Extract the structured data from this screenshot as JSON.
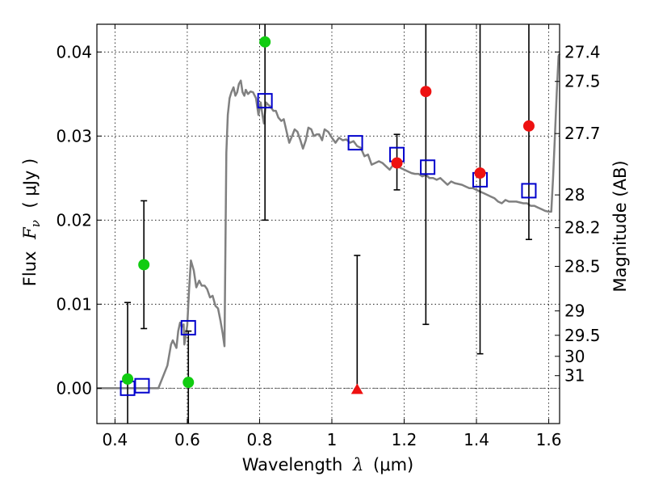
{
  "chart_data": {
    "type": "scatter",
    "xlabel_prefix": "Wavelength",
    "xlabel_symbol": "λ",
    "xlabel_units": "(μm)",
    "ylabel_prefix": "Flux",
    "ylabel_symbol": "F",
    "ylabel_subscript": "ν",
    "ylabel_units": "( μJy )",
    "y2label": "Magnitude (AB)",
    "xlim": [
      0.35,
      1.63
    ],
    "ylim": [
      -0.0042,
      0.0433
    ],
    "grid": true,
    "xticks": [
      0.4,
      0.6,
      0.8,
      1.0,
      1.2,
      1.4,
      1.6
    ],
    "xtick_labels": [
      "0.4",
      "0.6",
      "0.8",
      "1",
      "1.2",
      "1.4",
      "1.6"
    ],
    "yticks": [
      0.0,
      0.01,
      0.02,
      0.03,
      0.04
    ],
    "ytick_labels": [
      "0.00",
      "0.01",
      "0.02",
      "0.03",
      "0.04"
    ],
    "magnitude_ticks": [
      {
        "label": "27.4",
        "flux": 0.04
      },
      {
        "label": "27.5",
        "flux": 0.0365
      },
      {
        "label": "27.7",
        "flux": 0.0303
      },
      {
        "label": "28",
        "flux": 0.023
      },
      {
        "label": "28.2",
        "flux": 0.0191
      },
      {
        "label": "28.5",
        "flux": 0.0145
      },
      {
        "label": "29",
        "flux": 0.0092
      },
      {
        "label": "29.5",
        "flux": 0.0063
      },
      {
        "label": "30",
        "flux": 0.0038
      },
      {
        "label": "31",
        "flux": 0.0015
      }
    ],
    "series": [
      {
        "name": "model SED",
        "kind": "line",
        "color": "#808080",
        "x": [
          0.35,
          0.52,
          0.545,
          0.555,
          0.56,
          0.57,
          0.575,
          0.58,
          0.585,
          0.59,
          0.592,
          0.6,
          0.605,
          0.61,
          0.618,
          0.625,
          0.633,
          0.64,
          0.648,
          0.655,
          0.663,
          0.67,
          0.678,
          0.685,
          0.692,
          0.698,
          0.703,
          0.708,
          0.712,
          0.717,
          0.722,
          0.728,
          0.733,
          0.738,
          0.743,
          0.748,
          0.753,
          0.758,
          0.762,
          0.768,
          0.775,
          0.782,
          0.79,
          0.797,
          0.803,
          0.808,
          0.812,
          0.818,
          0.822,
          0.83,
          0.838,
          0.845,
          0.852,
          0.86,
          0.867,
          0.875,
          0.882,
          0.89,
          0.897,
          0.905,
          0.913,
          0.92,
          0.928,
          0.935,
          0.943,
          0.95,
          0.958,
          0.965,
          0.973,
          0.98,
          0.99,
          1.0,
          1.01,
          1.02,
          1.03,
          1.04,
          1.05,
          1.06,
          1.07,
          1.08,
          1.09,
          1.1,
          1.11,
          1.12,
          1.13,
          1.14,
          1.15,
          1.16,
          1.17,
          1.18,
          1.19,
          1.2,
          1.21,
          1.22,
          1.23,
          1.24,
          1.25,
          1.26,
          1.27,
          1.28,
          1.29,
          1.3,
          1.31,
          1.32,
          1.33,
          1.34,
          1.35,
          1.36,
          1.37,
          1.38,
          1.39,
          1.4,
          1.41,
          1.42,
          1.43,
          1.44,
          1.45,
          1.46,
          1.47,
          1.48,
          1.49,
          1.5,
          1.51,
          1.52,
          1.53,
          1.54,
          1.55,
          1.56,
          1.57,
          1.58,
          1.59,
          1.6,
          1.607,
          1.612,
          1.617,
          1.622,
          1.627,
          1.63
        ],
        "y": [
          0.0,
          0.0,
          0.0027,
          0.0052,
          0.0057,
          0.0048,
          0.0068,
          0.0078,
          0.0073,
          0.0076,
          0.0052,
          0.0075,
          0.0118,
          0.0152,
          0.014,
          0.012,
          0.0128,
          0.0122,
          0.0122,
          0.0118,
          0.0108,
          0.011,
          0.0098,
          0.0095,
          0.008,
          0.0065,
          0.005,
          0.028,
          0.0325,
          0.0345,
          0.0352,
          0.0358,
          0.0348,
          0.0352,
          0.0362,
          0.0366,
          0.0352,
          0.0348,
          0.0355,
          0.035,
          0.0353,
          0.0352,
          0.0345,
          0.0325,
          0.034,
          0.0325,
          0.0315,
          0.034,
          0.0338,
          0.0335,
          0.033,
          0.033,
          0.0322,
          0.0318,
          0.032,
          0.0305,
          0.0292,
          0.03,
          0.0308,
          0.0305,
          0.0295,
          0.0285,
          0.0295,
          0.031,
          0.0308,
          0.03,
          0.0302,
          0.0302,
          0.0295,
          0.0308,
          0.0305,
          0.0298,
          0.0292,
          0.0298,
          0.0295,
          0.0296,
          0.0292,
          0.0294,
          0.0288,
          0.0286,
          0.0276,
          0.0278,
          0.0266,
          0.0268,
          0.027,
          0.0268,
          0.0264,
          0.026,
          0.0266,
          0.0265,
          0.0262,
          0.026,
          0.0258,
          0.0256,
          0.0255,
          0.0255,
          0.0252,
          0.0254,
          0.025,
          0.025,
          0.0248,
          0.025,
          0.0246,
          0.0242,
          0.0246,
          0.0244,
          0.0243,
          0.0242,
          0.024,
          0.0238,
          0.0238,
          0.0236,
          0.0234,
          0.0232,
          0.023,
          0.0228,
          0.0226,
          0.0222,
          0.022,
          0.0224,
          0.0222,
          0.0222,
          0.0222,
          0.0221,
          0.022,
          0.022,
          0.0217,
          0.0217,
          0.0215,
          0.0213,
          0.0211,
          0.021,
          0.021,
          0.025,
          0.03,
          0.035,
          0.0395,
          0.0398
        ]
      },
      {
        "name": "model photometry",
        "kind": "open-square",
        "color": "#0000cc",
        "x": [
          0.435,
          0.475,
          0.603,
          0.815,
          1.065,
          1.18,
          1.265,
          1.41,
          1.545
        ],
        "y": [
          0.0,
          0.0003,
          0.0072,
          0.0342,
          0.0292,
          0.0278,
          0.0263,
          0.0248,
          0.0235
        ]
      },
      {
        "name": "optical detections",
        "kind": "filled-circle",
        "color": "#11cc11",
        "x": [
          0.435,
          0.48,
          0.603,
          0.815
        ],
        "y": [
          0.0011,
          0.0147,
          0.0007,
          0.0412
        ],
        "yerr_low": [
          -0.0042,
          0.0071,
          -0.0042,
          0.02
        ],
        "yerr_high": [
          0.0102,
          0.0223,
          0.0068,
          0.0433
        ]
      },
      {
        "name": "infrared detections",
        "kind": "filled-circle",
        "color": "#ee1111",
        "x": [
          1.18,
          1.26,
          1.41,
          1.545
        ],
        "y": [
          0.0268,
          0.0353,
          0.0256,
          0.0312
        ],
        "yerr_low": [
          0.0236,
          0.0076,
          0.0041,
          0.0177
        ],
        "yerr_high": [
          0.0302,
          0.0433,
          0.0433,
          0.0433
        ]
      },
      {
        "name": "upper limit",
        "kind": "filled-triangle",
        "color": "#ee1111",
        "x": [
          1.07
        ],
        "y": [
          -0.0001
        ],
        "yerr_low": [
          -0.0001
        ],
        "yerr_high": [
          0.0158
        ]
      }
    ]
  }
}
